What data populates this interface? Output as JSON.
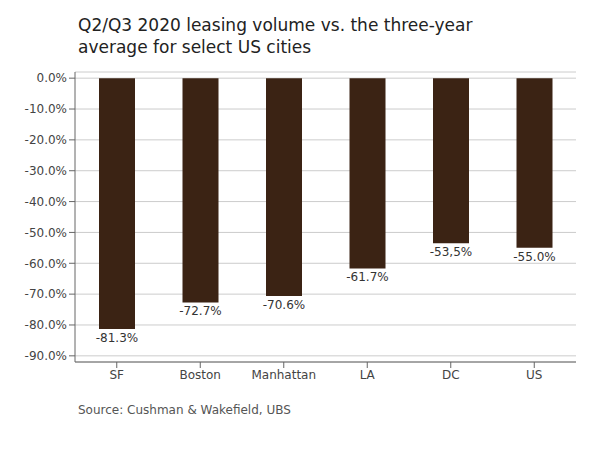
{
  "chart_data": {
    "type": "bar",
    "title": "Q2/Q3 2020 leasing volume vs. the three-year\naverage for select US cities",
    "categories": [
      "SF",
      "Boston",
      "Manhattan",
      "LA",
      "DC",
      "US"
    ],
    "values": [
      -81.3,
      -72.7,
      -70.6,
      -61.7,
      -53.5,
      -55.0
    ],
    "value_labels": [
      "-81.3%",
      "-72.7%",
      "-70.6%",
      "-61.7%",
      "-53,5%",
      "-55.0%"
    ],
    "data_labels": true,
    "color": "#3b2314",
    "ylim": [
      -92,
      2
    ],
    "yticks": [
      {
        "value": 0,
        "label": "0.0%"
      },
      {
        "value": -10,
        "label": "-10.0%"
      },
      {
        "value": -20,
        "label": "-20.0%"
      },
      {
        "value": -30,
        "label": "-30.0%"
      },
      {
        "value": -40,
        "label": "-40.0%"
      },
      {
        "value": -50,
        "label": "-50.0%"
      },
      {
        "value": -60,
        "label": "-60.0%"
      },
      {
        "value": -70,
        "label": "-70.0%"
      },
      {
        "value": -80,
        "label": "-80.0%"
      },
      {
        "value": -90,
        "label": "-90.0%"
      }
    ],
    "grid": true,
    "annotations": [
      "Source: Cushman & Wakefield, UBS"
    ]
  }
}
